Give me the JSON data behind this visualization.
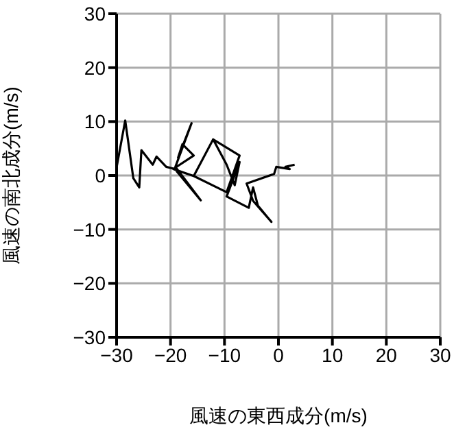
{
  "chart_data": {
    "type": "line",
    "xlabel": "風速の東西成分(m/s)",
    "ylabel": "風速の南北成分(m/s)",
    "xlim": [
      -30,
      30
    ],
    "ylim": [
      -30,
      30
    ],
    "xticks": [
      -30,
      -20,
      -10,
      0,
      10,
      20,
      30
    ],
    "yticks": [
      -30,
      -20,
      -10,
      0,
      10,
      20,
      30
    ],
    "grid": true,
    "marker": "none",
    "series": [
      {
        "color": "#000000",
        "x": [
          -30,
          -28.4,
          -26.9,
          -25.8,
          -25.4,
          -23.3,
          -22.6,
          -20.8,
          -19.2,
          -14.4,
          -19.1,
          -16.1,
          -18.6,
          -17.8,
          -15.7,
          -19.5,
          -15.7,
          -12.1,
          -7.2,
          -9.6,
          -15.7,
          -12.1,
          -9.6,
          -8.1,
          -7.2,
          -9.6,
          -5.5,
          -4.7,
          -3.8,
          -1.3,
          -4.7,
          -5.9,
          -0.8,
          -0.4,
          2.1,
          1.3,
          3
        ],
        "values": [
          1.5,
          10.2,
          -0.5,
          -2.2,
          4.7,
          2,
          3.5,
          1.6,
          1.2,
          -4.6,
          1.6,
          9.7,
          3.3,
          5.8,
          3.7,
          1.2,
          -0.1,
          6.7,
          3.7,
          -3.1,
          -0.1,
          6.7,
          2,
          -1.8,
          2.5,
          -3.9,
          -6,
          -2.2,
          -5.6,
          -8.6,
          -4.7,
          -1.5,
          0.3,
          1.6,
          1.2,
          1.6,
          2
        ]
      }
    ]
  }
}
